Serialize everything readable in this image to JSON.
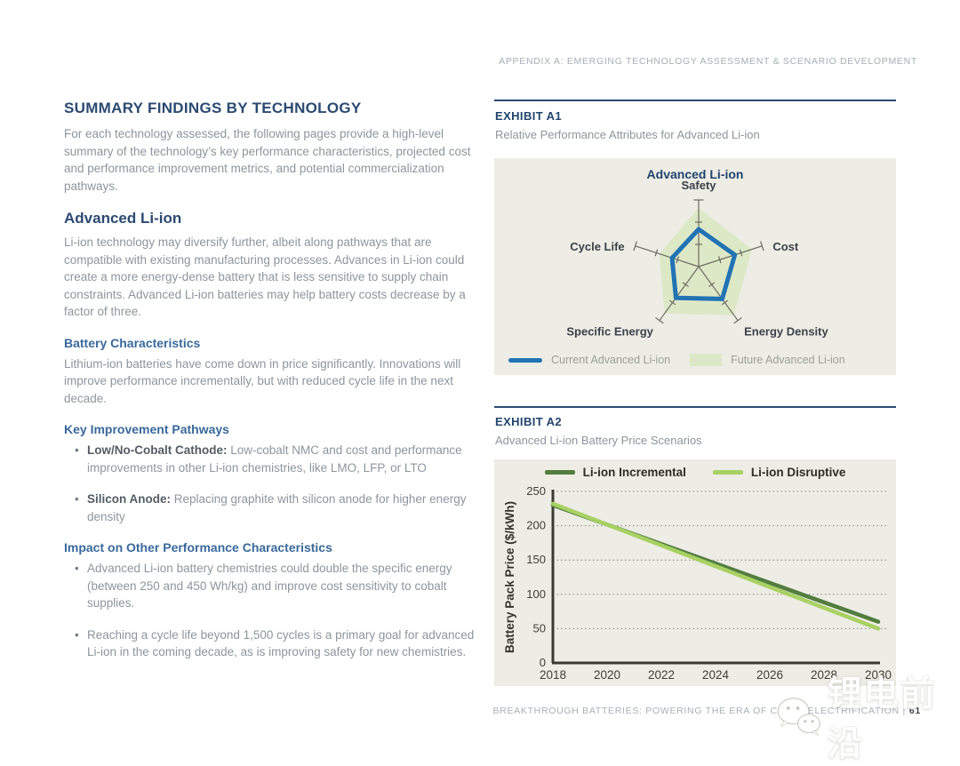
{
  "page": {
    "header": "APPENDIX A: EMERGING TECHNOLOGY ASSESSMENT & SCENARIO DEVELOPMENT",
    "footer_text": "BREAKTHROUGH BATTERIES: POWERING THE ERA OF CLEAN ELECTRIFICATION |",
    "page_number": "61",
    "watermark": "锂电前沿"
  },
  "left": {
    "title": "SUMMARY FINDINGS BY TECHNOLOGY",
    "intro": "For each technology assessed, the following pages provide a high-level summary of the technology’s key performance characteristics, projected cost and performance improvement metrics, and potential commercialization pathways.",
    "tech": {
      "title": "Advanced Li-ion",
      "body": "Li-ion technology may diversify further, albeit along pathways that are compatible with existing manufacturing processes. Advances in Li-ion could create a more energy-dense battery that is less sensitive to supply chain constraints. Advanced Li-ion batteries may help battery costs decrease by a factor of three."
    },
    "battery": {
      "heading": "Battery Characteristics",
      "body": "Lithium-ion batteries have come down in price significantly. Innovations will improve performance incrementally, but with reduced cycle life in the next decade."
    },
    "pathways": {
      "heading": "Key Improvement Pathways",
      "bullets": [
        {
          "lead": "Low/No-Cobalt Cathode:",
          "text": " Low-cobalt NMC and cost and performance improvements in other Li-ion chemistries, like LMO, LFP, or LTO"
        },
        {
          "lead": "Silicon Anode:",
          "text": " Replacing graphite with silicon anode for higher energy density"
        }
      ]
    },
    "impact": {
      "heading": "Impact on Other Performance Characteristics",
      "bullets": [
        {
          "text": "Advanced Li-ion battery chemistries could double the specific energy (between 250 and 450 Wh/kg) and improve cost sensitivity to cobalt supplies."
        },
        {
          "text": "Reaching a cycle life beyond 1,500 cycles is a primary goal for advanced Li-ion in the coming decade, as is improving safety for new chemistries."
        }
      ]
    }
  },
  "exhibits": {
    "a1": {
      "label": "EXHIBIT A1",
      "caption": "Relative Performance Attributes for Advanced Li-ion"
    },
    "a2": {
      "label": "EXHIBIT A2",
      "caption": "Advanced Li-ion Battery Price Scenarios"
    }
  },
  "chart_data": [
    {
      "type": "radar",
      "title": "Advanced Li-ion",
      "axes": [
        "Safety",
        "Cost",
        "Energy Density",
        "Specific Energy",
        "Cycle Life"
      ],
      "scale_max": 1.0,
      "legend_position": "bottom",
      "series": [
        {
          "name": "Future Advanced Li-ion",
          "style": "area",
          "color": "#dce8c5",
          "values": [
            0.88,
            0.84,
            0.9,
            0.87,
            0.62
          ]
        },
        {
          "name": "Current Advanced Li-ion",
          "style": "line",
          "color": "#2173b3",
          "values": [
            0.56,
            0.57,
            0.6,
            0.58,
            0.42
          ]
        }
      ]
    },
    {
      "type": "line",
      "title": "",
      "x": [
        2018,
        2030
      ],
      "xticks": [
        2018,
        2020,
        2022,
        2024,
        2026,
        2028,
        2030
      ],
      "yticks": [
        0,
        50,
        100,
        150,
        200,
        250
      ],
      "ylim": [
        0,
        250
      ],
      "xlabel": "",
      "ylabel": "Battery Pack Price ($/kWh)",
      "grid": "horizontal-dotted",
      "legend_position": "top",
      "series": [
        {
          "name": "Li-ion Incremental",
          "color": "#527d3f",
          "values": [
            230,
            60
          ]
        },
        {
          "name": "Li-ion Disruptive",
          "color": "#a8d163",
          "values": [
            232,
            50
          ]
        }
      ]
    }
  ]
}
